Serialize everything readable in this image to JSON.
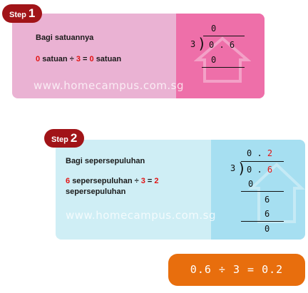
{
  "step1": {
    "badge_word": "Step",
    "badge_num": "1",
    "title": "Bagi satuannya",
    "eq_num": "0",
    "eq_text1": "satuan ÷",
    "eq_divisor": "3",
    "eq_eq": "=",
    "eq_result": "0",
    "eq_text2": "satuan",
    "quotient": "0",
    "divisor": "3",
    "dividend": "0 . 6",
    "sub": "0"
  },
  "step2": {
    "badge_word": "Step",
    "badge_num": "2",
    "title": "Bagi sepersepuluhan",
    "eq_num": "6",
    "eq_text1": "sepersepuluhan ÷",
    "eq_divisor": "3",
    "eq_eq": "=",
    "eq_result": "2",
    "eq_text2": "sepersepuluhan",
    "quotient_int": "0 .",
    "quotient_dec": "2",
    "divisor": "3",
    "dividend_int": "0 .",
    "dividend_dec": "6",
    "sub1": "0",
    "rem1": "6",
    "sub2": "6",
    "rem2": "0"
  },
  "watermark": "www.homecampus.com.sg",
  "answer": "0.6 ÷ 3 = 0.2",
  "colors": {
    "badge": "#a11418",
    "red_text": "#e21414",
    "card1_left": "#eab2d3",
    "card1_right": "#ee6fa9",
    "card2_left": "#cfeef5",
    "card2_right": "#a6dff1",
    "answer_box": "#e86e0d"
  }
}
